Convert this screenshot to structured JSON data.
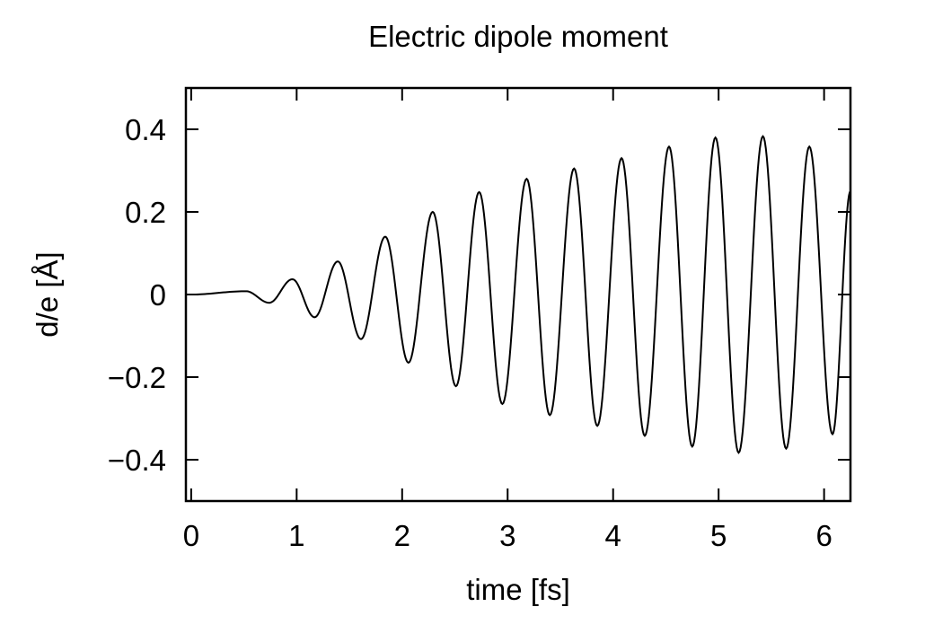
{
  "chart_data": {
    "type": "line",
    "title": "Electric dipole moment",
    "xlabel": "time [fs]",
    "ylabel": "d/e [Å]",
    "xlim": [
      -0.05,
      6.25
    ],
    "ylim": [
      -0.5,
      0.5
    ],
    "x_ticks": [
      0,
      1,
      2,
      3,
      4,
      5,
      6
    ],
    "x_tick_labels": [
      "0",
      "1",
      "2",
      "3",
      "4",
      "5",
      "6"
    ],
    "y_ticks": [
      0.4,
      0.2,
      0,
      -0.2,
      -0.4
    ],
    "y_tick_labels": [
      "0.4",
      "0.2",
      "0",
      "−0.2",
      "−0.4"
    ],
    "grid": false,
    "legend": "none",
    "line_color": "#000000",
    "series": [
      {
        "x": [
          0.0,
          0.52,
          0.74,
          0.96,
          1.17,
          1.39,
          1.61,
          1.84,
          2.06,
          2.29,
          2.51,
          2.73,
          2.95,
          3.18,
          3.4,
          3.63,
          3.85,
          4.08,
          4.3,
          4.53,
          4.75,
          4.97,
          5.19,
          5.42,
          5.64,
          5.86,
          6.08,
          6.25
        ],
        "y": [
          0.0,
          0.008,
          -0.02,
          0.037,
          -0.055,
          0.08,
          -0.108,
          0.14,
          -0.165,
          0.2,
          -0.222,
          0.248,
          -0.265,
          0.28,
          -0.292,
          0.305,
          -0.318,
          0.33,
          -0.342,
          0.358,
          -0.368,
          0.38,
          -0.383,
          0.383,
          -0.373,
          0.358,
          -0.338,
          0.25
        ]
      }
    ]
  }
}
